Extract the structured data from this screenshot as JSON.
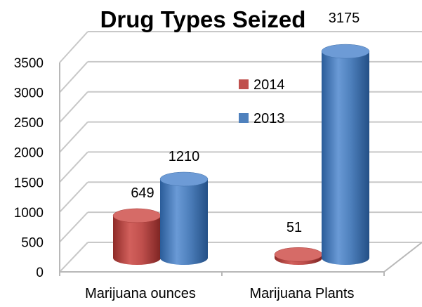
{
  "chart_data": {
    "type": "bar",
    "title": "Drug Types Seized",
    "xlabel": "",
    "ylabel": "",
    "categories": [
      "Marijuana ounces",
      "Marijuana Plants"
    ],
    "series": [
      {
        "name": "2014",
        "values": [
          649,
          51
        ],
        "color": "#c0504d"
      },
      {
        "name": "2013",
        "values": [
          1210,
          3175
        ],
        "color": "#4f81bd"
      }
    ],
    "value_labels": [
      "649",
      "1210",
      "51",
      "3175"
    ],
    "ylim": [
      0,
      3500
    ],
    "yticks": [
      "0",
      "500",
      "1000",
      "1500",
      "2000",
      "2500",
      "3000",
      "3500"
    ],
    "grid": true,
    "legend_position": "inside-center",
    "style": "3d-cylinder"
  }
}
